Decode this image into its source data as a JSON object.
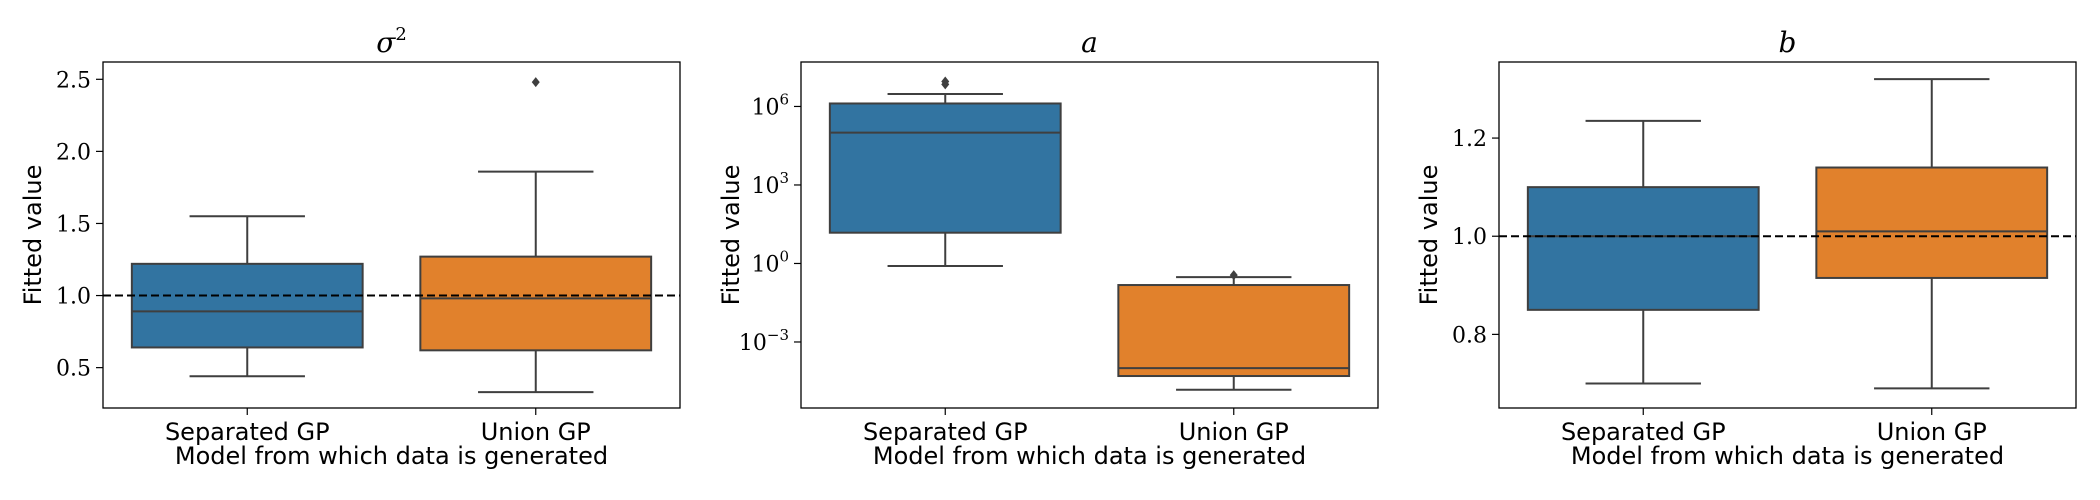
{
  "chart_data": [
    {
      "type": "box",
      "title": "σ",
      "title_superscript": "2",
      "xlabel": "Model from which data is generated",
      "ylabel": "Fitted value",
      "yscale": "linear",
      "ylim": [
        0.22,
        2.62
      ],
      "yticks": [
        0.5,
        1.0,
        1.5,
        2.0,
        2.5
      ],
      "ytick_labels": [
        "0.5",
        "1.0",
        "1.5",
        "2.0",
        "2.5"
      ],
      "reference_line": 1.0,
      "categories": [
        "Separated GP",
        "Union GP"
      ],
      "boxes": [
        {
          "category": "Separated GP",
          "color": "#3274a1",
          "whisker_low": 0.44,
          "q1": 0.64,
          "median": 0.89,
          "q3": 1.22,
          "whisker_high": 1.55,
          "outliers": []
        },
        {
          "category": "Union GP",
          "color": "#e1812c",
          "whisker_low": 0.33,
          "q1": 0.62,
          "median": 0.98,
          "q3": 1.27,
          "whisker_high": 1.86,
          "outliers": [
            2.48
          ]
        }
      ]
    },
    {
      "type": "box",
      "title": "a",
      "xlabel": "Model from which data is generated",
      "ylabel": "Fitted value",
      "yscale": "log",
      "ylim": [
        3e-06,
        50000000
      ],
      "yticks": [
        0.001,
        1,
        1000,
        1000000
      ],
      "ytick_labels": [
        {
          "base": "10",
          "exp": "−3"
        },
        {
          "base": "10",
          "exp": "0"
        },
        {
          "base": "10",
          "exp": "3"
        },
        {
          "base": "10",
          "exp": "6"
        }
      ],
      "categories": [
        "Separated GP",
        "Union GP"
      ],
      "boxes": [
        {
          "category": "Separated GP",
          "color": "#3274a1",
          "whisker_low": 0.8,
          "q1": 15,
          "median": 100000,
          "q3": 1300000,
          "whisker_high": 3000000,
          "outliers": [
            7000000,
            9000000
          ]
        },
        {
          "category": "Union GP",
          "color": "#e1812c",
          "whisker_low": 1.5e-05,
          "q1": 5e-05,
          "median": 0.0001,
          "q3": 0.15,
          "whisker_high": 0.3,
          "outliers": [
            0.36
          ]
        }
      ]
    },
    {
      "type": "box",
      "title": "b",
      "xlabel": "Model from which data is generated",
      "ylabel": "Fitted value",
      "yscale": "linear",
      "ylim": [
        0.65,
        1.355
      ],
      "yticks": [
        0.8,
        1.0,
        1.2
      ],
      "ytick_labels": [
        "0.8",
        "1.0",
        "1.2"
      ],
      "reference_line": 1.0,
      "categories": [
        "Separated GP",
        "Union GP"
      ],
      "boxes": [
        {
          "category": "Separated GP",
          "color": "#3274a1",
          "whisker_low": 0.7,
          "q1": 0.85,
          "median": 1.0,
          "q3": 1.1,
          "whisker_high": 1.235,
          "outliers": []
        },
        {
          "category": "Union GP",
          "color": "#e1812c",
          "whisker_low": 0.69,
          "q1": 0.915,
          "median": 1.01,
          "q3": 1.14,
          "whisker_high": 1.32,
          "outliers": []
        }
      ]
    }
  ]
}
